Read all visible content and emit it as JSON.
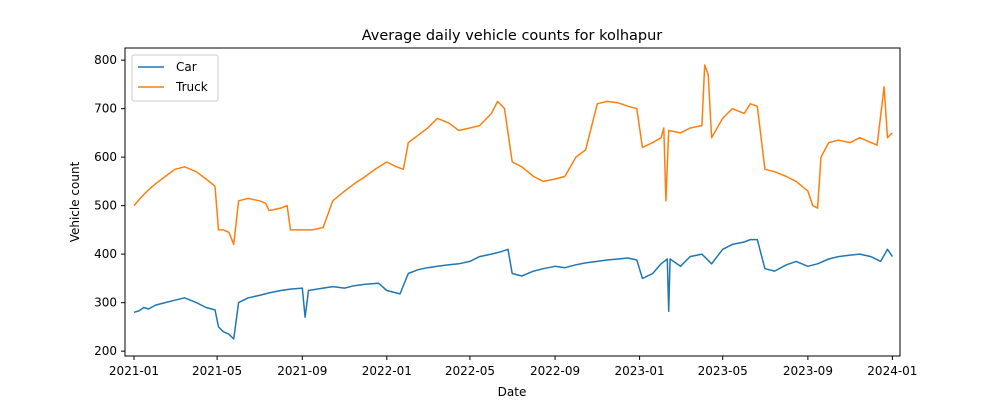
{
  "chart_data": {
    "type": "line",
    "title": "Average daily vehicle counts for kolhapur",
    "xlabel": "Date",
    "ylabel": "Vehicle count",
    "xlim": [
      "2020-12-19",
      "2024-01-12"
    ],
    "ylim": [
      190,
      825
    ],
    "grid": false,
    "legend": "top-left",
    "x_ticks": [
      {
        "date": "2021-01-01",
        "label": "2021-01"
      },
      {
        "date": "2021-05-01",
        "label": "2021-05"
      },
      {
        "date": "2021-09-01",
        "label": "2021-09"
      },
      {
        "date": "2022-01-01",
        "label": "2022-01"
      },
      {
        "date": "2022-05-01",
        "label": "2022-05"
      },
      {
        "date": "2022-09-01",
        "label": "2022-09"
      },
      {
        "date": "2023-01-01",
        "label": "2023-01"
      },
      {
        "date": "2023-05-01",
        "label": "2023-05"
      },
      {
        "date": "2023-09-01",
        "label": "2023-09"
      },
      {
        "date": "2024-01-01",
        "label": "2024-01"
      }
    ],
    "y_ticks": [
      200,
      300,
      400,
      500,
      600,
      700,
      800
    ],
    "series": [
      {
        "name": "Car",
        "color": "#1f77b4",
        "points": [
          [
            "2021-01-01",
            280
          ],
          [
            "2021-01-08",
            283
          ],
          [
            "2021-01-15",
            290
          ],
          [
            "2021-01-22",
            287
          ],
          [
            "2021-02-01",
            295
          ],
          [
            "2021-02-15",
            300
          ],
          [
            "2021-03-01",
            305
          ],
          [
            "2021-03-15",
            310
          ],
          [
            "2021-04-01",
            300
          ],
          [
            "2021-04-15",
            290
          ],
          [
            "2021-04-28",
            285
          ],
          [
            "2021-05-03",
            250
          ],
          [
            "2021-05-10",
            240
          ],
          [
            "2021-05-18",
            235
          ],
          [
            "2021-05-25",
            225
          ],
          [
            "2021-06-01",
            300
          ],
          [
            "2021-06-15",
            310
          ],
          [
            "2021-07-01",
            315
          ],
          [
            "2021-07-15",
            320
          ],
          [
            "2021-08-01",
            325
          ],
          [
            "2021-08-15",
            328
          ],
          [
            "2021-09-01",
            330
          ],
          [
            "2021-09-05",
            270
          ],
          [
            "2021-09-10",
            325
          ],
          [
            "2021-10-01",
            330
          ],
          [
            "2021-10-15",
            333
          ],
          [
            "2021-11-01",
            330
          ],
          [
            "2021-11-15",
            335
          ],
          [
            "2021-12-01",
            338
          ],
          [
            "2021-12-20",
            340
          ],
          [
            "2022-01-01",
            325
          ],
          [
            "2022-01-20",
            318
          ],
          [
            "2022-02-01",
            360
          ],
          [
            "2022-02-15",
            368
          ],
          [
            "2022-03-01",
            372
          ],
          [
            "2022-03-15",
            375
          ],
          [
            "2022-04-01",
            378
          ],
          [
            "2022-04-15",
            380
          ],
          [
            "2022-05-01",
            385
          ],
          [
            "2022-05-15",
            395
          ],
          [
            "2022-06-01",
            400
          ],
          [
            "2022-06-15",
            405
          ],
          [
            "2022-06-25",
            410
          ],
          [
            "2022-07-01",
            360
          ],
          [
            "2022-07-15",
            355
          ],
          [
            "2022-08-01",
            365
          ],
          [
            "2022-08-15",
            370
          ],
          [
            "2022-09-01",
            375
          ],
          [
            "2022-09-15",
            372
          ],
          [
            "2022-10-01",
            378
          ],
          [
            "2022-10-15",
            382
          ],
          [
            "2022-11-01",
            385
          ],
          [
            "2022-11-15",
            388
          ],
          [
            "2022-12-01",
            390
          ],
          [
            "2022-12-15",
            392
          ],
          [
            "2022-12-28",
            388
          ],
          [
            "2023-01-05",
            350
          ],
          [
            "2023-01-20",
            360
          ],
          [
            "2023-02-01",
            380
          ],
          [
            "2023-02-10",
            390
          ],
          [
            "2023-02-12",
            282
          ],
          [
            "2023-02-14",
            390
          ],
          [
            "2023-03-01",
            375
          ],
          [
            "2023-03-15",
            395
          ],
          [
            "2023-04-01",
            400
          ],
          [
            "2023-04-15",
            380
          ],
          [
            "2023-05-01",
            410
          ],
          [
            "2023-05-15",
            420
          ],
          [
            "2023-06-01",
            425
          ],
          [
            "2023-06-10",
            430
          ],
          [
            "2023-06-20",
            430
          ],
          [
            "2023-07-01",
            370
          ],
          [
            "2023-07-15",
            365
          ],
          [
            "2023-08-01",
            378
          ],
          [
            "2023-08-15",
            385
          ],
          [
            "2023-09-01",
            375
          ],
          [
            "2023-09-15",
            380
          ],
          [
            "2023-10-01",
            390
          ],
          [
            "2023-10-15",
            395
          ],
          [
            "2023-11-01",
            398
          ],
          [
            "2023-11-15",
            400
          ],
          [
            "2023-12-01",
            395
          ],
          [
            "2023-12-15",
            385
          ],
          [
            "2023-12-25",
            410
          ],
          [
            "2024-01-01",
            395
          ]
        ]
      },
      {
        "name": "Truck",
        "color": "#ff7f0e",
        "points": [
          [
            "2021-01-01",
            500
          ],
          [
            "2021-01-10",
            515
          ],
          [
            "2021-01-20",
            530
          ],
          [
            "2021-02-01",
            545
          ],
          [
            "2021-02-15",
            560
          ],
          [
            "2021-03-01",
            575
          ],
          [
            "2021-03-15",
            580
          ],
          [
            "2021-04-01",
            570
          ],
          [
            "2021-04-15",
            555
          ],
          [
            "2021-04-28",
            540
          ],
          [
            "2021-05-03",
            450
          ],
          [
            "2021-05-10",
            450
          ],
          [
            "2021-05-18",
            445
          ],
          [
            "2021-05-25",
            420
          ],
          [
            "2021-06-01",
            510
          ],
          [
            "2021-06-15",
            515
          ],
          [
            "2021-07-01",
            510
          ],
          [
            "2021-07-10",
            505
          ],
          [
            "2021-07-15",
            490
          ],
          [
            "2021-08-01",
            495
          ],
          [
            "2021-08-10",
            500
          ],
          [
            "2021-08-15",
            450
          ],
          [
            "2021-09-01",
            450
          ],
          [
            "2021-09-15",
            450
          ],
          [
            "2021-10-01",
            455
          ],
          [
            "2021-10-15",
            510
          ],
          [
            "2021-11-01",
            530
          ],
          [
            "2021-11-15",
            545
          ],
          [
            "2021-12-01",
            560
          ],
          [
            "2021-12-15",
            575
          ],
          [
            "2022-01-01",
            590
          ],
          [
            "2022-01-15",
            580
          ],
          [
            "2022-01-25",
            575
          ],
          [
            "2022-02-01",
            630
          ],
          [
            "2022-02-15",
            645
          ],
          [
            "2022-03-01",
            660
          ],
          [
            "2022-03-15",
            680
          ],
          [
            "2022-04-01",
            670
          ],
          [
            "2022-04-15",
            655
          ],
          [
            "2022-05-01",
            660
          ],
          [
            "2022-05-15",
            665
          ],
          [
            "2022-06-01",
            690
          ],
          [
            "2022-06-10",
            715
          ],
          [
            "2022-06-20",
            700
          ],
          [
            "2022-07-01",
            590
          ],
          [
            "2022-07-15",
            580
          ],
          [
            "2022-08-01",
            560
          ],
          [
            "2022-08-15",
            550
          ],
          [
            "2022-09-01",
            555
          ],
          [
            "2022-09-15",
            560
          ],
          [
            "2022-10-01",
            600
          ],
          [
            "2022-10-15",
            615
          ],
          [
            "2022-11-01",
            710
          ],
          [
            "2022-11-15",
            715
          ],
          [
            "2022-12-01",
            712
          ],
          [
            "2022-12-15",
            705
          ],
          [
            "2022-12-28",
            700
          ],
          [
            "2023-01-05",
            620
          ],
          [
            "2023-01-20",
            630
          ],
          [
            "2023-02-01",
            640
          ],
          [
            "2023-02-05",
            660
          ],
          [
            "2023-02-08",
            510
          ],
          [
            "2023-02-12",
            655
          ],
          [
            "2023-03-01",
            650
          ],
          [
            "2023-03-15",
            660
          ],
          [
            "2023-04-01",
            665
          ],
          [
            "2023-04-05",
            790
          ],
          [
            "2023-04-10",
            770
          ],
          [
            "2023-04-15",
            640
          ],
          [
            "2023-05-01",
            680
          ],
          [
            "2023-05-15",
            700
          ],
          [
            "2023-06-01",
            690
          ],
          [
            "2023-06-10",
            710
          ],
          [
            "2023-06-20",
            705
          ],
          [
            "2023-07-01",
            575
          ],
          [
            "2023-07-15",
            570
          ],
          [
            "2023-08-01",
            560
          ],
          [
            "2023-08-15",
            550
          ],
          [
            "2023-09-01",
            530
          ],
          [
            "2023-09-08",
            500
          ],
          [
            "2023-09-15",
            495
          ],
          [
            "2023-09-20",
            600
          ],
          [
            "2023-10-01",
            630
          ],
          [
            "2023-10-15",
            635
          ],
          [
            "2023-11-01",
            630
          ],
          [
            "2023-11-15",
            640
          ],
          [
            "2023-12-01",
            630
          ],
          [
            "2023-12-10",
            625
          ],
          [
            "2023-12-20",
            745
          ],
          [
            "2023-12-25",
            640
          ],
          [
            "2024-01-01",
            650
          ]
        ]
      }
    ]
  }
}
